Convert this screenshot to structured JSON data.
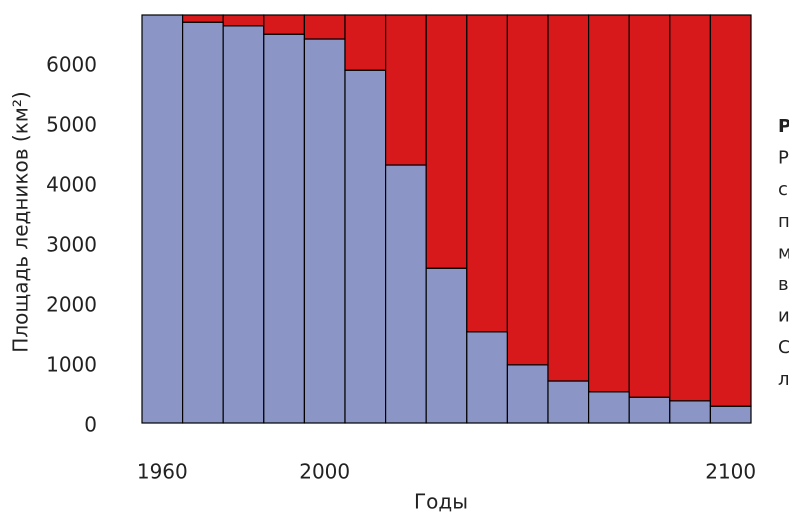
{
  "chart_data": {
    "type": "stacked_bar",
    "x": [
      1960,
      1970,
      1980,
      1990,
      2000,
      2010,
      2020,
      2030,
      2040,
      2050,
      2060,
      2070,
      2080,
      2090,
      2100
    ],
    "series": [
      {
        "color": "#8c96c6",
        "values": [
          6800,
          6680,
          6620,
          6480,
          6400,
          5880,
          4300,
          2580,
          1520,
          970,
          700,
          520,
          430,
          370,
          280
        ]
      },
      {
        "color": "#d7191c",
        "values": [
          0,
          120,
          180,
          320,
          400,
          920,
          2500,
          4220,
          5280,
          5830,
          6100,
          6280,
          6370,
          6430,
          6520
        ]
      }
    ],
    "bar_width": 10,
    "xlim": [
      1955,
      2105
    ],
    "xticks": [
      1960,
      2000,
      2100
    ],
    "ylim": [
      0,
      6800
    ],
    "yticks": [
      0,
      1000,
      2000,
      3000,
      4000,
      5000,
      6000
    ],
    "xlabel": "Годы",
    "ylabel": "Площадь ледников (км²)",
    "annotation_lines": [
      "Р",
      "Р",
      "с",
      "п",
      "м",
      "в",
      "и",
      "С",
      "л"
    ]
  }
}
